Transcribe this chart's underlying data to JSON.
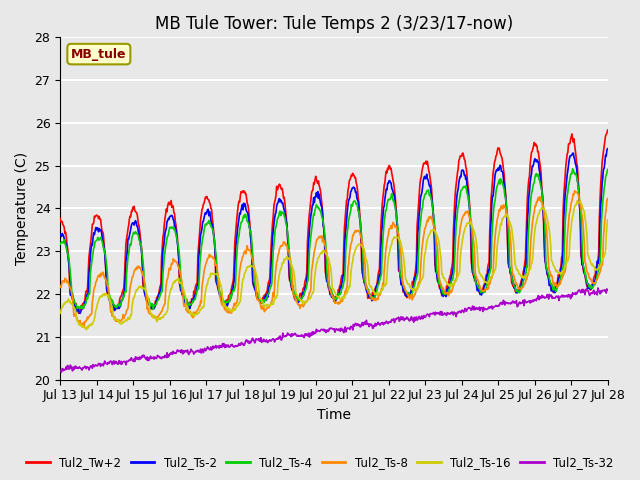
{
  "title": "MB Tule Tower: Tule Temps 2 (3/23/17-now)",
  "xlabel": "Time",
  "ylabel": "Temperature (C)",
  "ylim": [
    20.0,
    28.0
  ],
  "yticks": [
    20.0,
    21.0,
    22.0,
    23.0,
    24.0,
    25.0,
    26.0,
    27.0,
    28.0
  ],
  "xtick_labels": [
    "Jul 13",
    "Jul 14",
    "Jul 15",
    "Jul 16",
    "Jul 17",
    "Jul 18",
    "Jul 19",
    "Jul 20",
    "Jul 21",
    "Jul 22",
    "Jul 23",
    "Jul 24",
    "Jul 25",
    "Jul 26",
    "Jul 27",
    "Jul 28"
  ],
  "series_colors": {
    "Tul2_Tw+2": "#ff0000",
    "Tul2_Ts-2": "#0000ff",
    "Tul2_Ts-4": "#00cc00",
    "Tul2_Ts-8": "#ff8800",
    "Tul2_Ts-16": "#cccc00",
    "Tul2_Ts-32": "#aa00cc"
  },
  "legend_label": "MB_tule",
  "legend_label_color": "#880000",
  "legend_box_facecolor": "#ffffcc",
  "legend_box_edgecolor": "#999900",
  "plot_bg_color": "#e8e8e8",
  "fig_bg_color": "#e8e8e8",
  "grid_color": "#ffffff",
  "title_fontsize": 12,
  "axis_label_fontsize": 10,
  "tick_fontsize": 9,
  "linewidth": 1.2,
  "n_points": 800
}
